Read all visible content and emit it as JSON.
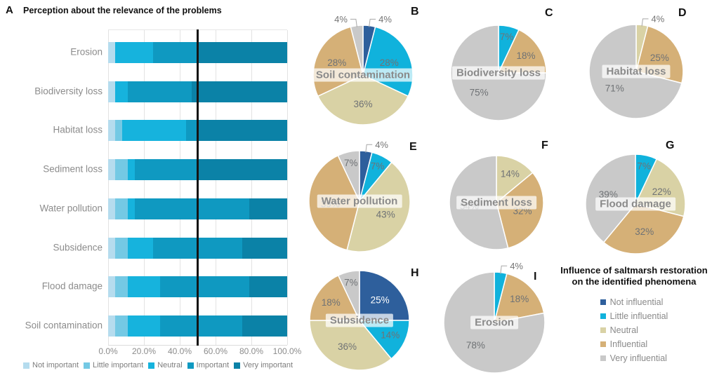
{
  "chart_data": [
    {
      "panel": "A",
      "type": "bar",
      "stacked": true,
      "orientation": "horizontal",
      "title": "Perception about the relevance of the problems",
      "categories": [
        "Erosion",
        "Biodiversity loss",
        "Habitat loss",
        "Sediment loss",
        "Water pollution",
        "Subsidence",
        "Flood damage",
        "Soil contamination"
      ],
      "series": [
        {
          "name": "Not important",
          "color": "#b5dcee",
          "values": [
            4,
            4,
            4,
            4,
            4,
            4,
            4,
            4
          ]
        },
        {
          "name": "Little important",
          "color": "#74c9e4",
          "values": [
            0,
            0,
            4,
            7,
            7,
            7,
            7,
            7
          ]
        },
        {
          "name": "Neutral",
          "color": "#16b3dd",
          "values": [
            21,
            7,
            36,
            4,
            4,
            14,
            18,
            18
          ]
        },
        {
          "name": "Important",
          "color": "#0f99c1",
          "values": [
            25,
            36,
            7,
            36,
            64,
            50,
            50,
            46
          ]
        },
        {
          "name": "Very important",
          "color": "#0b82a7",
          "values": [
            50,
            54,
            50,
            50,
            21,
            25,
            21,
            25
          ]
        }
      ],
      "xlim": [
        0,
        100
      ],
      "x_ticks": [
        "0.0%",
        "20.0%",
        "40.0%",
        "60.0%",
        "80.0%",
        "100.0%"
      ],
      "reference_line_x": 50,
      "values_are_percent": true
    },
    {
      "panel": "B",
      "type": "pie",
      "title": "Soil contamination",
      "slices": [
        {
          "label": "Not influential",
          "value": 4
        },
        {
          "label": "Little influential",
          "value": 28
        },
        {
          "label": "Neutral",
          "value": 36
        },
        {
          "label": "Influential",
          "value": 28
        },
        {
          "label": "Very influential",
          "value": 4
        }
      ]
    },
    {
      "panel": "C",
      "type": "pie",
      "title": "Biodiversity loss",
      "slices": [
        {
          "label": "Little influential",
          "value": 7
        },
        {
          "label": "Influential",
          "value": 18
        },
        {
          "label": "Very influential",
          "value": 75
        }
      ]
    },
    {
      "panel": "D",
      "type": "pie",
      "title": "Habitat loss",
      "slices": [
        {
          "label": "Neutral",
          "value": 4
        },
        {
          "label": "Influential",
          "value": 25
        },
        {
          "label": "Very influential",
          "value": 71
        }
      ]
    },
    {
      "panel": "E",
      "type": "pie",
      "title": "Water pollution",
      "slices": [
        {
          "label": "Not influential",
          "value": 4
        },
        {
          "label": "Little influential",
          "value": 7
        },
        {
          "label": "Neutral",
          "value": 43
        },
        {
          "label": "Influential",
          "value": 39
        },
        {
          "label": "Very influential",
          "value": 7
        }
      ]
    },
    {
      "panel": "F",
      "type": "pie",
      "title": "Sediment loss",
      "slices": [
        {
          "label": "Neutral",
          "value": 14
        },
        {
          "label": "Influential",
          "value": 32
        },
        {
          "label": "Very influential",
          "value": 54
        }
      ]
    },
    {
      "panel": "G",
      "type": "pie",
      "title": "Flood damage",
      "slices": [
        {
          "label": "Little influential",
          "value": 7
        },
        {
          "label": "Neutral",
          "value": 22
        },
        {
          "label": "Influential",
          "value": 32
        },
        {
          "label": "Very influential",
          "value": 39
        }
      ]
    },
    {
      "panel": "H",
      "type": "pie",
      "title": "Subsidence",
      "slices": [
        {
          "label": "Not influential",
          "value": 25
        },
        {
          "label": "Little influential",
          "value": 14
        },
        {
          "label": "Neutral",
          "value": 36
        },
        {
          "label": "Influential",
          "value": 18
        },
        {
          "label": "Very influential",
          "value": 7
        }
      ]
    },
    {
      "panel": "I",
      "type": "pie",
      "title": "Erosion",
      "slices": [
        {
          "label": "Little influential",
          "value": 4
        },
        {
          "label": "Influential",
          "value": 18
        },
        {
          "label": "Very influential",
          "value": 78
        }
      ]
    }
  ],
  "influence_legend": {
    "title_line1": "Influence of saltmarsh restoration",
    "title_line2": "on the identified phenomena",
    "items": [
      {
        "label": "Not influential",
        "color": "#2e5f9c"
      },
      {
        "label": "Little influential",
        "color": "#10b2dc"
      },
      {
        "label": "Neutral",
        "color": "#d9d2a5"
      },
      {
        "label": "Influential",
        "color": "#d5b077"
      },
      {
        "label": "Very influential",
        "color": "#c9c9c9"
      }
    ]
  },
  "pie_colors": {
    "Not influential": "#2e5f9c",
    "Little influential": "#10b2dc",
    "Neutral": "#d9d2a5",
    "Influential": "#d5b077",
    "Very influential": "#c9c9c9"
  }
}
